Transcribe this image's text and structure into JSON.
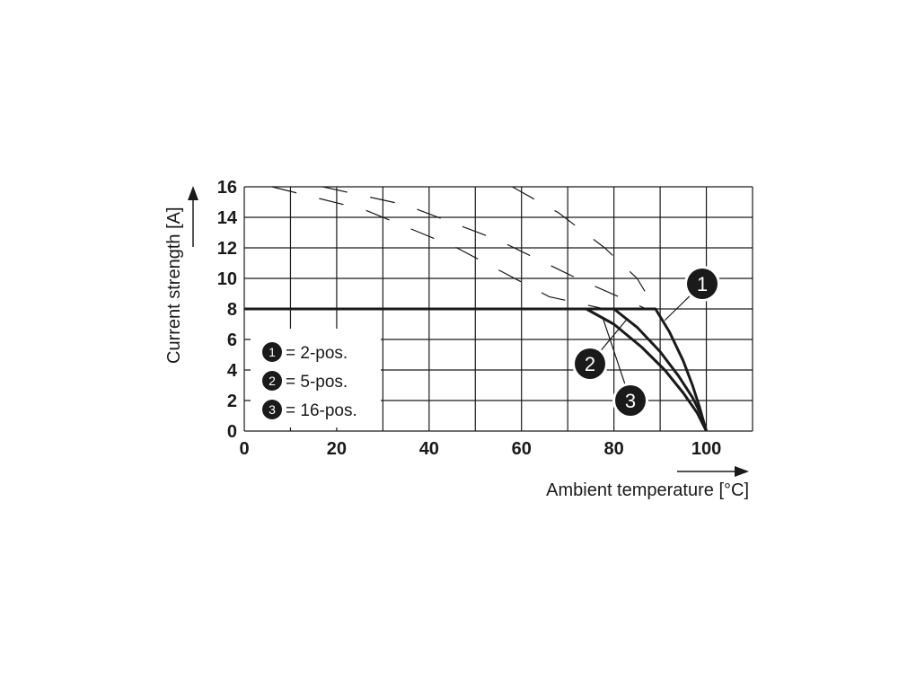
{
  "chart_data": {
    "type": "line",
    "title": "",
    "xlabel": "Ambient temperature [°C]",
    "ylabel": "Current strength [A]",
    "xlim": [
      0,
      110
    ],
    "ylim": [
      0,
      16
    ],
    "xticks": [
      0,
      20,
      40,
      60,
      80,
      100
    ],
    "yticks": [
      0,
      2,
      4,
      6,
      8,
      10,
      12,
      14,
      16
    ],
    "grid": true,
    "legend": {
      "placement": "bottom-left",
      "entries": [
        {
          "marker": "1",
          "text": "= 2-pos."
        },
        {
          "marker": "2",
          "text": "= 5-pos."
        },
        {
          "marker": "3",
          "text": "= 16-pos."
        }
      ]
    },
    "series": [
      {
        "name": "2-pos.",
        "marker": "1",
        "style": "solid",
        "x": [
          0,
          89,
          92,
          95,
          97,
          98.5,
          100
        ],
        "y": [
          8,
          8,
          6.5,
          4.6,
          3.0,
          1.6,
          0
        ]
      },
      {
        "name": "5-pos.",
        "marker": "2",
        "style": "solid",
        "x": [
          0,
          80,
          85,
          90,
          94,
          97,
          99,
          100
        ],
        "y": [
          8,
          8,
          6.8,
          5.2,
          3.6,
          2.2,
          1.0,
          0
        ]
      },
      {
        "name": "16-pos.",
        "marker": "3",
        "style": "solid",
        "x": [
          0,
          74,
          80,
          86,
          91,
          95,
          98,
          100
        ],
        "y": [
          8,
          8,
          7.0,
          5.5,
          4.0,
          2.5,
          1.2,
          0
        ]
      },
      {
        "name": "",
        "style": "dashed",
        "x": [
          6,
          26,
          46,
          66,
          78
        ],
        "y": [
          16,
          14.5,
          12,
          8.8,
          8
        ]
      },
      {
        "name": "",
        "style": "dashed",
        "x": [
          17,
          35,
          55,
          72,
          87
        ],
        "y": [
          16,
          14.8,
          12.5,
          10,
          8
        ]
      },
      {
        "name": "",
        "style": "dashed",
        "x": [
          58,
          68,
          78,
          85,
          89
        ],
        "y": [
          16,
          14.3,
          12,
          10,
          8
        ]
      }
    ]
  }
}
